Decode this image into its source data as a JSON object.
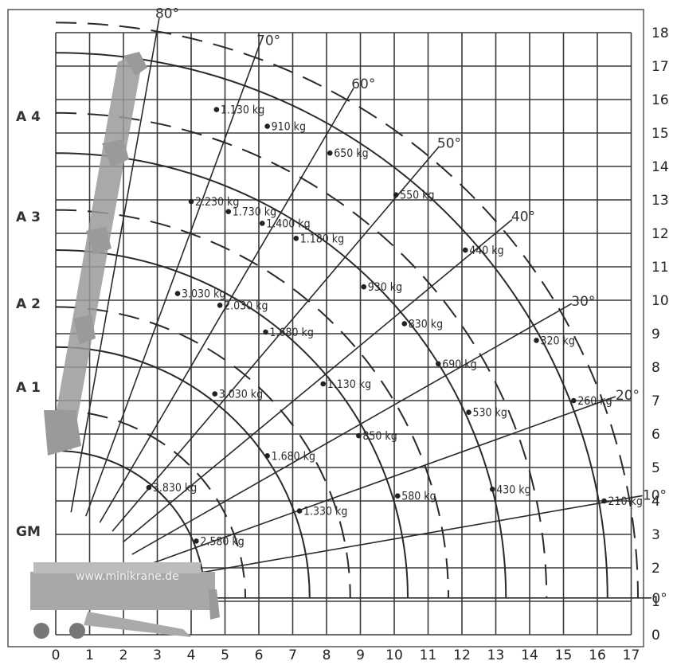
{
  "chart_data": {
    "type": "load-chart",
    "x_ticks": [
      "0",
      "1",
      "2",
      "3",
      "4",
      "5",
      "6",
      "7",
      "8",
      "9",
      "10",
      "11",
      "12",
      "13",
      "14",
      "15",
      "16",
      "17"
    ],
    "y_ticks": [
      "0",
      "1",
      "2",
      "3",
      "4",
      "5",
      "6",
      "7",
      "8",
      "9",
      "10",
      "11",
      "12",
      "13",
      "14",
      "15",
      "16",
      "17",
      "18"
    ],
    "xlim": [
      0,
      17
    ],
    "ylim": [
      0,
      18
    ],
    "angles": [
      {
        "label": "0°",
        "deg": 0
      },
      {
        "label": "10°",
        "deg": 10
      },
      {
        "label": "20°",
        "deg": 20
      },
      {
        "label": "30°",
        "deg": 30
      },
      {
        "label": "40°",
        "deg": 40
      },
      {
        "label": "50°",
        "deg": 50
      },
      {
        "label": "60°",
        "deg": 60
      },
      {
        "label": "70°",
        "deg": 70
      },
      {
        "label": "80°",
        "deg": 80
      }
    ],
    "boom_labels": [
      {
        "label": "GM",
        "y": 3.1
      },
      {
        "label": "A 1",
        "y": 7.4
      },
      {
        "label": "A 2",
        "y": 9.9
      },
      {
        "label": "A 3",
        "y": 12.5
      },
      {
        "label": "A 4",
        "y": 15.5
      }
    ],
    "watermark": "www.minikrane.de",
    "boom_extensions": [
      {
        "name": "GM",
        "loads": [
          {
            "x": 2.75,
            "y": 4.4,
            "label": "3.830 kg"
          },
          {
            "x": 4.15,
            "y": 2.8,
            "label": "2.580 kg"
          }
        ]
      },
      {
        "name": "A 1",
        "loads": [
          {
            "x": 4.7,
            "y": 7.2,
            "label": "3.030 kg"
          },
          {
            "x": 6.25,
            "y": 5.35,
            "label": "1.680 kg"
          },
          {
            "x": 7.2,
            "y": 3.7,
            "label": "1.330 kg"
          }
        ]
      },
      {
        "name": "A 2",
        "loads": [
          {
            "x": 3.6,
            "y": 10.2,
            "label": "3.030 kg"
          },
          {
            "x": 4.85,
            "y": 9.85,
            "label": "2.030 kg"
          },
          {
            "x": 6.2,
            "y": 9.05,
            "label": "1.680 kg"
          },
          {
            "x": 7.9,
            "y": 7.5,
            "label": "1.130 kg"
          },
          {
            "x": 8.95,
            "y": 5.95,
            "label": "850 kg"
          },
          {
            "x": 10.1,
            "y": 4.15,
            "label": "580 kg"
          }
        ]
      },
      {
        "name": "A 3",
        "loads": [
          {
            "x": 4.0,
            "y": 12.95,
            "label": "2.230 kg"
          },
          {
            "x": 5.1,
            "y": 12.65,
            "label": "1.730 kg"
          },
          {
            "x": 6.1,
            "y": 12.3,
            "label": "1.400 kg"
          },
          {
            "x": 7.1,
            "y": 11.85,
            "label": "1.180 kg"
          },
          {
            "x": 9.1,
            "y": 10.4,
            "label": "930 kg"
          },
          {
            "x": 10.3,
            "y": 9.3,
            "label": "830 kg"
          },
          {
            "x": 11.3,
            "y": 8.1,
            "label": "690 kg"
          },
          {
            "x": 12.2,
            "y": 6.65,
            "label": "530 kg"
          },
          {
            "x": 12.9,
            "y": 4.35,
            "label": "430 kg"
          }
        ]
      },
      {
        "name": "A 4",
        "loads": [
          {
            "x": 4.75,
            "y": 15.7,
            "label": "1.130 kg"
          },
          {
            "x": 6.25,
            "y": 15.2,
            "label": "910 kg"
          },
          {
            "x": 8.1,
            "y": 14.4,
            "label": "650 kg"
          },
          {
            "x": 10.05,
            "y": 13.15,
            "label": "550 kg"
          },
          {
            "x": 12.1,
            "y": 11.5,
            "label": "440 kg"
          },
          {
            "x": 14.2,
            "y": 8.8,
            "label": "320 kg"
          },
          {
            "x": 15.3,
            "y": 7.0,
            "label": "260 kg"
          },
          {
            "x": 16.2,
            "y": 4.0,
            "label": "210 kg"
          }
        ]
      }
    ]
  }
}
